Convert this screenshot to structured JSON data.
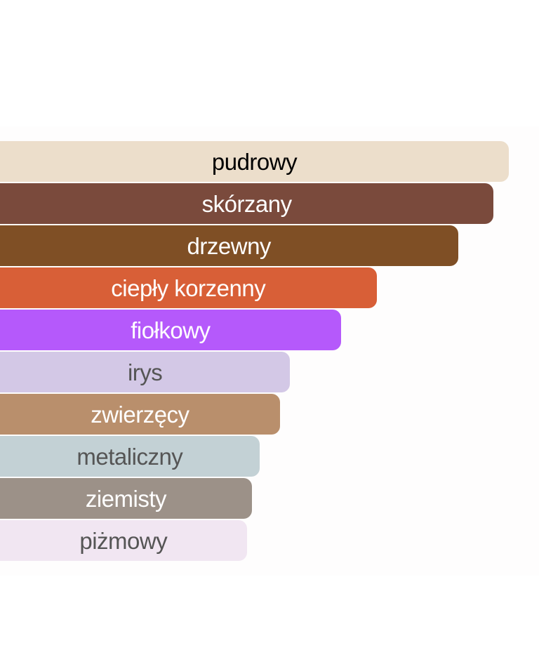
{
  "chart_data": {
    "type": "bar",
    "orientation": "horizontal",
    "categories": [
      "pudrowy",
      "skórzany",
      "drzewny",
      "ciepły korzenny",
      "fiołkowy",
      "irys",
      "zwierzęcy",
      "metaliczny",
      "ziemisty",
      "piżmowy"
    ],
    "values": [
      100,
      97,
      90,
      74,
      67,
      57,
      55,
      51,
      49.5,
      48.5
    ],
    "colors": [
      "#ecdecb",
      "#7a4a3c",
      "#7f4f25",
      "#d85f37",
      "#b559fb",
      "#d3c8e6",
      "#b98f6c",
      "#c3d1d5",
      "#9c9188",
      "#f1e6f2"
    ],
    "label_colors": [
      "#000000",
      "#ffffff",
      "#ffffff",
      "#ffffff",
      "#ffffff",
      "#555555",
      "#ffffff",
      "#555555",
      "#ffffff",
      "#555555"
    ],
    "xlim": [
      0,
      100
    ],
    "grid": false,
    "legend": "none"
  }
}
